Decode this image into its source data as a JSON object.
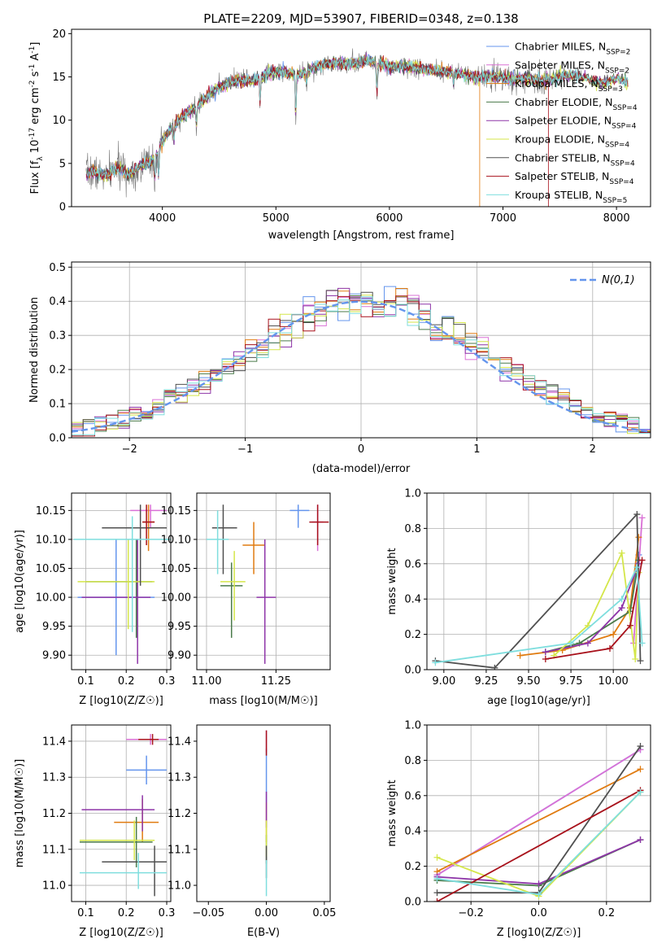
{
  "colors": {
    "chabrier_miles": "#6495ed",
    "salpeter_miles": "#da70d6",
    "kroupa_miles": "#e07b10",
    "chabrier_elodie": "#4a7a4a",
    "salpeter_elodie": "#8e35a8",
    "kroupa_elodie": "#d4e64a",
    "chabrier_stelib": "#505050",
    "salpeter_stelib": "#a8111b",
    "kroupa_stelib": "#7fdede",
    "gaussian": "#6495ed"
  },
  "chart_data": [
    {
      "id": "spectrum",
      "type": "line",
      "title": "PLATE=2209, MJD=53907, FIBERID=0348, z=0.138",
      "xlabel": "wavelength [Angstrom, rest frame]",
      "ylabel": "Flux [f_λ 10^-17 erg cm^-2 s^-1 A^-1]",
      "xlim": [
        3200,
        8300
      ],
      "ylim": [
        0,
        20.5
      ],
      "xticks": [
        "4000",
        "5000",
        "6000",
        "7000",
        "8000"
      ],
      "yticks": [
        "0",
        "5",
        "10",
        "15",
        "20"
      ],
      "legend_position": "top-right",
      "legend": [
        "Chabrier MILES, N_SSP=2",
        "Salpeter MILES, N_SSP=2",
        "Kroupa MILES, N_SSP=3",
        "Chabrier ELODIE, N_SSP=4",
        "Salpeter ELODIE, N_SSP=4",
        "Kroupa ELODIE, N_SSP=4",
        "Chabrier STELIB, N_SSP=4",
        "Salpeter STELIB, N_SSP=4",
        "Kroupa STELIB, N_SSP=5"
      ],
      "continuum": [
        [
          3330,
          3.9
        ],
        [
          3400,
          4.0
        ],
        [
          3500,
          3.5
        ],
        [
          3600,
          4.6
        ],
        [
          3700,
          3.7
        ],
        [
          3800,
          4.6
        ],
        [
          3900,
          5.3
        ],
        [
          3950,
          6.0
        ],
        [
          4000,
          7.6
        ],
        [
          4100,
          9.4
        ],
        [
          4200,
          10.6
        ],
        [
          4300,
          11.5
        ],
        [
          4400,
          12.9
        ],
        [
          4500,
          13.8
        ],
        [
          4600,
          14.3
        ],
        [
          4700,
          14.6
        ],
        [
          4800,
          14.5
        ],
        [
          4900,
          15.2
        ],
        [
          5000,
          15.6
        ],
        [
          5100,
          15.5
        ],
        [
          5200,
          15.2
        ],
        [
          5300,
          15.8
        ],
        [
          5400,
          16.4
        ],
        [
          5500,
          16.6
        ],
        [
          5600,
          16.5
        ],
        [
          5700,
          16.6
        ],
        [
          5800,
          16.9
        ],
        [
          5900,
          16.5
        ],
        [
          6000,
          16.2
        ],
        [
          6100,
          16.3
        ],
        [
          6200,
          16.1
        ],
        [
          6300,
          15.9
        ],
        [
          6400,
          15.7
        ],
        [
          6500,
          15.6
        ],
        [
          6600,
          15.4
        ],
        [
          6700,
          15.1
        ],
        [
          6800,
          14.9
        ],
        [
          6900,
          15.1
        ],
        [
          7000,
          14.9
        ],
        [
          7100,
          14.7
        ],
        [
          7200,
          14.9
        ],
        [
          7300,
          14.6
        ],
        [
          7400,
          14.6
        ],
        [
          7500,
          15.1
        ],
        [
          7600,
          15.2
        ],
        [
          7700,
          15.0
        ],
        [
          7800,
          14.5
        ],
        [
          7900,
          14.3
        ],
        [
          8000,
          14.8
        ],
        [
          8100,
          14.4
        ]
      ],
      "absorption_lines": [
        [
          3933,
          -3.0
        ],
        [
          3968,
          -3.5
        ],
        [
          4102,
          -2.2
        ],
        [
          4300,
          -2.5
        ],
        [
          4861,
          -3.5
        ],
        [
          5175,
          -5.5
        ],
        [
          5270,
          -1.5
        ],
        [
          5890,
          -4.0
        ],
        [
          6563,
          -1.5
        ]
      ],
      "drops": [
        {
          "series": "Kroupa MILES, N_SSP=3",
          "x": 6795
        },
        {
          "series": "Salpeter STELIB, N_SSP=4",
          "x": 7400
        }
      ]
    },
    {
      "id": "residuals",
      "type": "line",
      "xlabel": "(data-model)/error",
      "ylabel": "Normed distribution",
      "xlim": [
        -2.5,
        2.5
      ],
      "ylim": [
        0,
        0.515
      ],
      "xticks": [
        "−2",
        "−1",
        "0",
        "1",
        "2"
      ],
      "yticks": [
        "0.0",
        "0.1",
        "0.2",
        "0.3",
        "0.4",
        "0.5"
      ],
      "gaussian_label": "N(0,1)",
      "legend_position": "top-right"
    },
    {
      "id": "age_vs_Z",
      "type": "scatter",
      "xlabel": "Z [log10(Z/Z☉)]",
      "ylabel": "age  [log10(age/yr)]",
      "xlim": [
        0.065,
        0.31
      ],
      "ylim": [
        9.875,
        10.18
      ],
      "xticks": [
        "0.1",
        "0.2",
        "0.3"
      ],
      "yticks": [
        "9.90",
        "9.95",
        "10.00",
        "10.05",
        "10.10",
        "10.15"
      ],
      "points": [
        {
          "x": 0.175,
          "y": 10.0,
          "xlo": 0.08,
          "xhi": 0.27,
          "ylo": 9.9,
          "yhi": 10.1
        },
        {
          "x": 0.26,
          "y": 10.15,
          "xlo": 0.21,
          "xhi": 0.3,
          "ylo": 10.12,
          "yhi": 10.16
        },
        {
          "x": 0.255,
          "y": 10.13,
          "xlo": 0.24,
          "xhi": 0.27,
          "ylo": 10.08,
          "yhi": 10.16
        },
        {
          "x": 0.225,
          "y": 10.027,
          "xlo": 0.1,
          "xhi": 0.265,
          "ylo": 9.93,
          "yhi": 10.1
        },
        {
          "x": 0.228,
          "y": 10.0,
          "xlo": 0.09,
          "xhi": 0.26,
          "ylo": 9.885,
          "yhi": 10.1
        },
        {
          "x": 0.205,
          "y": 10.027,
          "xlo": 0.08,
          "xhi": 0.27,
          "ylo": 9.945,
          "yhi": 10.1
        },
        {
          "x": 0.235,
          "y": 10.12,
          "xlo": 0.14,
          "xhi": 0.3,
          "ylo": 10.02,
          "yhi": 10.16
        },
        {
          "x": 0.25,
          "y": 10.13,
          "xlo": 0.24,
          "xhi": 0.27,
          "ylo": 10.09,
          "yhi": 10.16
        },
        {
          "x": 0.215,
          "y": 10.1,
          "xlo": 0.07,
          "xhi": 0.31,
          "ylo": 9.94,
          "yhi": 10.14
        }
      ]
    },
    {
      "id": "age_vs_mass",
      "type": "scatter",
      "xlabel": "mass [log10(M/M☉)]",
      "ylabel": "",
      "xlim": [
        10.965,
        11.445
      ],
      "ylim": [
        9.875,
        10.18
      ],
      "xticks": [
        "11.00",
        "11.25"
      ],
      "yticks": [
        "9.90",
        "9.95",
        "10.00",
        "10.05",
        "10.10",
        "10.15"
      ],
      "points": [
        {
          "x": 11.33,
          "y": 10.15,
          "xlo": 11.3,
          "xhi": 11.37,
          "ylo": 10.12,
          "yhi": 10.16
        },
        {
          "x": 11.4,
          "y": 10.13,
          "xlo": 11.38,
          "xhi": 11.42,
          "ylo": 10.08,
          "yhi": 10.16
        },
        {
          "x": 11.17,
          "y": 10.09,
          "xlo": 11.13,
          "xhi": 11.21,
          "ylo": 10.04,
          "yhi": 10.13
        },
        {
          "x": 11.09,
          "y": 10.02,
          "xlo": 11.05,
          "xhi": 11.13,
          "ylo": 9.93,
          "yhi": 10.06
        },
        {
          "x": 11.21,
          "y": 10.0,
          "xlo": 11.18,
          "xhi": 11.25,
          "ylo": 9.885,
          "yhi": 10.1
        },
        {
          "x": 11.1,
          "y": 10.027,
          "xlo": 11.05,
          "xhi": 11.14,
          "ylo": 9.96,
          "yhi": 10.08
        },
        {
          "x": 11.06,
          "y": 10.12,
          "xlo": 11.02,
          "xhi": 11.11,
          "ylo": 10.04,
          "yhi": 10.16
        },
        {
          "x": 11.4,
          "y": 10.13,
          "xlo": 11.37,
          "xhi": 11.44,
          "ylo": 10.09,
          "yhi": 10.16
        },
        {
          "x": 11.04,
          "y": 10.1,
          "xlo": 11.0,
          "xhi": 11.08,
          "ylo": 10.04,
          "yhi": 10.15
        }
      ]
    },
    {
      "id": "weight_vs_age",
      "type": "line",
      "xlabel": "age  [log10(age/yr)]",
      "ylabel": "mass weight",
      "xlim": [
        8.9,
        10.22
      ],
      "ylim": [
        0,
        1.0
      ],
      "xticks": [
        "9.00",
        "9.25",
        "9.50",
        "9.75",
        "10.00"
      ],
      "yticks": [
        "0.0",
        "0.2",
        "0.4",
        "0.6",
        "0.8",
        "1.0"
      ],
      "series": [
        {
          "name": "Chabrier MILES",
          "x": [
            10.1,
            10.15
          ],
          "y": [
            0.35,
            0.65
          ]
        },
        {
          "name": "Salpeter MILES",
          "x": [
            10.12,
            10.17
          ],
          "y": [
            0.15,
            0.86
          ]
        },
        {
          "name": "Kroupa MILES",
          "x": [
            9.45,
            9.7,
            10.0,
            10.1,
            10.15
          ],
          "y": [
            0.08,
            0.11,
            0.2,
            0.35,
            0.75
          ]
        },
        {
          "name": "Chabrier ELODIE",
          "x": [
            9.6,
            9.8,
            10.1,
            10.15
          ],
          "y": [
            0.1,
            0.15,
            0.33,
            0.62
          ]
        },
        {
          "name": "Salpeter ELODIE",
          "x": [
            9.6,
            9.85,
            10.05,
            10.15
          ],
          "y": [
            0.1,
            0.15,
            0.35,
            0.6
          ]
        },
        {
          "name": "Kroupa ELODIE",
          "x": [
            9.65,
            9.85,
            10.05,
            10.13,
            10.15
          ],
          "y": [
            0.08,
            0.25,
            0.66,
            0.06,
            0.55
          ]
        },
        {
          "name": "Chabrier STELIB",
          "x": [
            8.95,
            9.3,
            10.14,
            10.16
          ],
          "y": [
            0.05,
            0.01,
            0.88,
            0.05
          ]
        },
        {
          "name": "Salpeter STELIB",
          "x": [
            9.6,
            9.98,
            10.1,
            10.17
          ],
          "y": [
            0.06,
            0.12,
            0.25,
            0.62
          ]
        },
        {
          "name": "Kroupa STELIB",
          "x": [
            8.95,
            9.75,
            10.05,
            10.14,
            10.17
          ],
          "y": [
            0.04,
            0.15,
            0.4,
            0.58,
            0.15
          ]
        }
      ]
    },
    {
      "id": "mass_vs_Z",
      "type": "scatter",
      "xlabel": "Z [log10(Z/Z☉)]",
      "ylabel": "mass [log10(M/M☉)]",
      "xlim": [
        0.065,
        0.31
      ],
      "ylim": [
        10.955,
        11.445
      ],
      "xticks": [
        "0.1",
        "0.2",
        "0.3"
      ],
      "yticks": [
        "11.0",
        "11.1",
        "11.2",
        "11.3",
        "11.4"
      ],
      "points": [
        {
          "x": 0.25,
          "y": 11.32,
          "xlo": 0.2,
          "xhi": 0.3,
          "ylo": 11.28,
          "yhi": 11.36
        },
        {
          "x": 0.26,
          "y": 11.405,
          "xlo": 0.2,
          "xhi": 0.3,
          "ylo": 11.39,
          "yhi": 11.42
        },
        {
          "x": 0.24,
          "y": 11.175,
          "xlo": 0.17,
          "xhi": 0.28,
          "ylo": 11.12,
          "yhi": 11.24
        },
        {
          "x": 0.225,
          "y": 11.12,
          "xlo": 0.085,
          "xhi": 0.265,
          "ylo": 11.05,
          "yhi": 11.19
        },
        {
          "x": 0.24,
          "y": 11.21,
          "xlo": 0.09,
          "xhi": 0.27,
          "ylo": 11.15,
          "yhi": 11.25
        },
        {
          "x": 0.22,
          "y": 11.125,
          "xlo": 0.085,
          "xhi": 0.27,
          "ylo": 11.07,
          "yhi": 11.18
        },
        {
          "x": 0.27,
          "y": 11.065,
          "xlo": 0.14,
          "xhi": 0.3,
          "ylo": 10.97,
          "yhi": 11.11
        },
        {
          "x": 0.265,
          "y": 11.405,
          "xlo": 0.23,
          "xhi": 0.28,
          "ylo": 11.39,
          "yhi": 11.42
        },
        {
          "x": 0.23,
          "y": 11.035,
          "xlo": 0.085,
          "xhi": 0.3,
          "ylo": 10.99,
          "yhi": 11.09
        }
      ]
    },
    {
      "id": "mass_vs_ebv",
      "type": "scatter",
      "xlabel": "E(B-V)",
      "ylabel": "",
      "xlim": [
        -0.06,
        0.055
      ],
      "ylim": [
        10.955,
        11.445
      ],
      "xticks": [
        "−0.05",
        "0.00",
        "0.05"
      ],
      "yticks": [
        "11.0",
        "11.1",
        "11.2",
        "11.3",
        "11.4"
      ],
      "points": [
        {
          "x": 0.0,
          "y": 11.32,
          "xlo": 0.0,
          "xhi": 0.0,
          "ylo": 11.23,
          "yhi": 11.38
        },
        {
          "x": 0.0,
          "y": 11.405,
          "xlo": 0.0,
          "xhi": 0.0,
          "ylo": 11.37,
          "yhi": 11.43
        },
        {
          "x": 0.0,
          "y": 11.175,
          "xlo": 0.0,
          "xhi": 0.0,
          "ylo": 11.12,
          "yhi": 11.23
        },
        {
          "x": 0.0,
          "y": 11.1,
          "xlo": 0.0,
          "xhi": 0.0,
          "ylo": 11.06,
          "yhi": 11.14
        },
        {
          "x": 0.0,
          "y": 11.21,
          "xlo": 0.0,
          "xhi": 0.0,
          "ylo": 11.16,
          "yhi": 11.26
        },
        {
          "x": 0.0,
          "y": 11.12,
          "xlo": 0.0,
          "xhi": 0.0,
          "ylo": 11.08,
          "yhi": 11.18
        },
        {
          "x": 0.0,
          "y": 11.07,
          "xlo": 0.0,
          "xhi": 0.0,
          "ylo": 11.02,
          "yhi": 11.11
        },
        {
          "x": 0.0,
          "y": 11.405,
          "xlo": 0.0,
          "xhi": 0.0,
          "ylo": 11.36,
          "yhi": 11.43
        },
        {
          "x": 0.0,
          "y": 11.03,
          "xlo": 0.0,
          "xhi": 0.0,
          "ylo": 10.97,
          "yhi": 11.07
        }
      ]
    },
    {
      "id": "weight_vs_Z",
      "type": "line",
      "xlabel": "Z [log10(Z/Z☉)]",
      "ylabel": "mass weight",
      "xlim": [
        -0.33,
        0.33
      ],
      "ylim": [
        0,
        1.0
      ],
      "xticks": [
        "−0.2",
        "0.0",
        "0.2"
      ],
      "yticks": [
        "0.0",
        "0.2",
        "0.4",
        "0.6",
        "0.8",
        "1.0"
      ],
      "series": [
        {
          "name": "Chabrier MILES",
          "x": [
            -0.3,
            0.3
          ],
          "y": [
            0.15,
            0.86
          ]
        },
        {
          "name": "Salpeter MILES",
          "x": [
            -0.3,
            0.3
          ],
          "y": [
            0.15,
            0.86
          ]
        },
        {
          "name": "Kroupa MILES",
          "x": [
            -0.3,
            0.3
          ],
          "y": [
            0.17,
            0.75
          ]
        },
        {
          "name": "Chabrier ELODIE",
          "x": [
            -0.3,
            0.0,
            0.3
          ],
          "y": [
            0.12,
            0.09,
            0.35
          ]
        },
        {
          "name": "Salpeter ELODIE",
          "x": [
            -0.3,
            0.0,
            0.3
          ],
          "y": [
            0.14,
            0.1,
            0.35
          ]
        },
        {
          "name": "Kroupa ELODIE",
          "x": [
            -0.3,
            0.0,
            0.3
          ],
          "y": [
            0.25,
            0.03,
            0.62
          ]
        },
        {
          "name": "Chabrier STELIB",
          "x": [
            -0.3,
            0.0,
            0.3
          ],
          "y": [
            0.05,
            0.05,
            0.88
          ]
        },
        {
          "name": "Salpeter STELIB",
          "x": [
            -0.3,
            0.3
          ],
          "y": [
            0.0,
            0.63
          ]
        },
        {
          "name": "Kroupa STELIB",
          "x": [
            -0.3,
            0.0,
            0.3
          ],
          "y": [
            0.13,
            0.04,
            0.62
          ]
        }
      ]
    }
  ]
}
